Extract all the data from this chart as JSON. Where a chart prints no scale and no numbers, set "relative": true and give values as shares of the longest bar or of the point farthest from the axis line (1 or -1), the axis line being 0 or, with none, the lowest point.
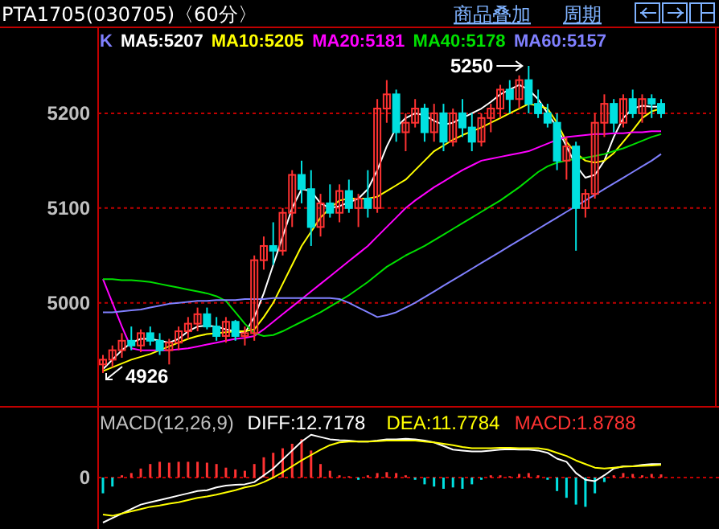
{
  "chart_data": [
    {
      "type": "candlestick",
      "title": "PTA1705(030705)〈60分〉",
      "legend_title": "K",
      "legend": "top",
      "grid": "y",
      "annotations": [
        "商品叠加",
        "周期",
        "5250",
        "4926"
      ],
      "categories": [
        null,
        null,
        null,
        null,
        null,
        null,
        null,
        null,
        null,
        null,
        null,
        null,
        null,
        null,
        null,
        null,
        null,
        null,
        null,
        null,
        null,
        null,
        null,
        null,
        null,
        null,
        null,
        null,
        null,
        null,
        null,
        null,
        null,
        null,
        null,
        null,
        null,
        null,
        null,
        null,
        null,
        null,
        null,
        null,
        null,
        null,
        null,
        null,
        null,
        null,
        null,
        null,
        null,
        null,
        null,
        null,
        null,
        null,
        null,
        null
      ],
      "ylim": [
        4892,
        5289
      ],
      "yticks": [
        5000,
        5100,
        5200
      ],
      "ohlc": [
        [
          4935,
          4945,
          4926,
          4940
        ],
        [
          4940,
          4955,
          4932,
          4950
        ],
        [
          4950,
          4968,
          4942,
          4960
        ],
        [
          4960,
          4975,
          4950,
          4955
        ],
        [
          4955,
          4972,
          4948,
          4968
        ],
        [
          4968,
          4975,
          4955,
          4960
        ],
        [
          4960,
          4968,
          4945,
          4950
        ],
        [
          4950,
          4962,
          4935,
          4958
        ],
        [
          4958,
          4975,
          4950,
          4970
        ],
        [
          4970,
          4985,
          4962,
          4978
        ],
        [
          4978,
          4995,
          4970,
          4988
        ],
        [
          4988,
          4995,
          4972,
          4975
        ],
        [
          4975,
          4985,
          4960,
          4965
        ],
        [
          4965,
          4985,
          4958,
          4980
        ],
        [
          4980,
          4982,
          4960,
          4965
        ],
        [
          4965,
          4975,
          4955,
          4968
        ],
        [
          4968,
          5050,
          4960,
          5045
        ],
        [
          5045,
          5070,
          5035,
          5060
        ],
        [
          5060,
          5085,
          5040,
          5055
        ],
        [
          5055,
          5100,
          5050,
          5095
        ],
        [
          5095,
          5140,
          5080,
          5135
        ],
        [
          5135,
          5150,
          5105,
          5120
        ],
        [
          5120,
          5140,
          5060,
          5080
        ],
        [
          5080,
          5115,
          5070,
          5105
        ],
        [
          5105,
          5125,
          5090,
          5095
        ],
        [
          5095,
          5125,
          5085,
          5118
        ],
        [
          5118,
          5130,
          5095,
          5100
        ],
        [
          5100,
          5115,
          5080,
          5110
        ],
        [
          5110,
          5140,
          5090,
          5100
        ],
        [
          5100,
          5215,
          5095,
          5205
        ],
        [
          5205,
          5235,
          5190,
          5220
        ],
        [
          5220,
          5225,
          5170,
          5180
        ],
        [
          5180,
          5200,
          5160,
          5190
        ],
        [
          5190,
          5215,
          5185,
          5205
        ],
        [
          5205,
          5210,
          5170,
          5180
        ],
        [
          5180,
          5210,
          5170,
          5200
        ],
        [
          5200,
          5210,
          5160,
          5170
        ],
        [
          5170,
          5205,
          5165,
          5200
        ],
        [
          5200,
          5215,
          5175,
          5185
        ],
        [
          5185,
          5200,
          5160,
          5170
        ],
        [
          5170,
          5200,
          5165,
          5195
        ],
        [
          5195,
          5210,
          5180,
          5205
        ],
        [
          5205,
          5230,
          5195,
          5225
        ],
        [
          5225,
          5235,
          5200,
          5215
        ],
        [
          5215,
          5240,
          5205,
          5235
        ],
        [
          5235,
          5250,
          5200,
          5210
        ],
        [
          5210,
          5225,
          5195,
          5200
        ],
        [
          5200,
          5210,
          5185,
          5190
        ],
        [
          5190,
          5200,
          5140,
          5150
        ],
        [
          5150,
          5175,
          5130,
          5165
        ],
        [
          5165,
          5170,
          5055,
          5100
        ],
        [
          5100,
          5120,
          5090,
          5115
        ],
        [
          5115,
          5200,
          5110,
          5190
        ],
        [
          5190,
          5220,
          5175,
          5210
        ],
        [
          5210,
          5215,
          5180,
          5190
        ],
        [
          5190,
          5220,
          5185,
          5215
        ],
        [
          5215,
          5225,
          5195,
          5200
        ],
        [
          5200,
          5220,
          5190,
          5215
        ],
        [
          5215,
          5220,
          5195,
          5210
        ],
        [
          5210,
          5215,
          5195,
          5200
        ]
      ],
      "series": [
        {
          "name": "MA5:5207",
          "type": "line",
          "color": "#ffffff",
          "values": [
            4930,
            4940,
            4950,
            4958,
            4962,
            4962,
            4960,
            4958,
            4962,
            4970,
            4975,
            4976,
            4975,
            4972,
            4970,
            4968,
            4985,
            5010,
            5040,
            5070,
            5100,
            5120,
            5118,
            5105,
            5100,
            5102,
            5106,
            5110,
            5120,
            5140,
            5165,
            5185,
            5195,
            5200,
            5198,
            5192,
            5188,
            5190,
            5195,
            5200,
            5205,
            5212,
            5220,
            5225,
            5230,
            5225,
            5215,
            5200,
            5185,
            5165,
            5145,
            5132,
            5135,
            5150,
            5175,
            5195,
            5205,
            5208,
            5207,
            5207
          ]
        },
        {
          "name": "MA10:5205",
          "type": "line",
          "color": "#ffff00",
          "values": [
            4928,
            4932,
            4936,
            4940,
            4943,
            4946,
            4950,
            4954,
            4958,
            4962,
            4965,
            4967,
            4968,
            4969,
            4970,
            4970,
            4972,
            4985,
            5000,
            5020,
            5040,
            5060,
            5075,
            5090,
            5100,
            5108,
            5110,
            5110,
            5110,
            5112,
            5118,
            5124,
            5130,
            5140,
            5150,
            5160,
            5166,
            5172,
            5177,
            5181,
            5185,
            5190,
            5195,
            5200,
            5205,
            5210,
            5208,
            5205,
            5190,
            5170,
            5158,
            5150,
            5148,
            5150,
            5158,
            5170,
            5182,
            5195,
            5202,
            5205
          ]
        },
        {
          "name": "MA20:5181",
          "type": "line",
          "color": "#ff00ff",
          "values": [
            5025,
            5000,
            4975,
            4952,
            4950,
            4950,
            4950,
            4950,
            4951,
            4952,
            4954,
            4956,
            4958,
            4960,
            4962,
            4963,
            4965,
            4972,
            4980,
            4988,
            4996,
            5004,
            5012,
            5020,
            5028,
            5036,
            5044,
            5052,
            5060,
            5070,
            5080,
            5090,
            5100,
            5108,
            5115,
            5122,
            5128,
            5134,
            5140,
            5145,
            5150,
            5152,
            5154,
            5156,
            5158,
            5160,
            5164,
            5168,
            5172,
            5175,
            5176,
            5177,
            5178,
            5178,
            5179,
            5179,
            5180,
            5180,
            5181,
            5181
          ]
        },
        {
          "name": "MA40:5178",
          "type": "line",
          "color": "#00e000",
          "values": [
            5025,
            5025,
            5024,
            5024,
            5023,
            5022,
            5020,
            5018,
            5016,
            5014,
            5012,
            5010,
            5007,
            5002,
            4990,
            4978,
            4968,
            4965,
            4966,
            4970,
            4975,
            4980,
            4985,
            4990,
            4996,
            5002,
            5008,
            5015,
            5022,
            5030,
            5038,
            5044,
            5050,
            5055,
            5060,
            5066,
            5072,
            5078,
            5084,
            5090,
            5096,
            5102,
            5108,
            5115,
            5122,
            5130,
            5138,
            5144,
            5148,
            5150,
            5152,
            5153,
            5155,
            5157,
            5160,
            5163,
            5167,
            5171,
            5175,
            5178
          ]
        },
        {
          "name": "MA60:5157",
          "type": "line",
          "color": "#8080ff",
          "values": [
            4990,
            4990,
            4991,
            4992,
            4993,
            4995,
            4997,
            4999,
            5000,
            5001,
            5002,
            5002,
            5003,
            5003,
            5003,
            5004,
            5004,
            5004,
            5005,
            5005,
            5005,
            5005,
            5005,
            5005,
            5005,
            5004,
            5000,
            4995,
            4990,
            4985,
            4987,
            4990,
            4995,
            5000,
            5006,
            5012,
            5018,
            5024,
            5030,
            5036,
            5042,
            5048,
            5054,
            5060,
            5066,
            5072,
            5078,
            5084,
            5090,
            5096,
            5102,
            5108,
            5114,
            5120,
            5126,
            5132,
            5138,
            5144,
            5150,
            5157
          ]
        }
      ]
    },
    {
      "type": "bar",
      "title": "MACD(12,26,9)",
      "relative": true,
      "legend": "top left",
      "categories": [
        null,
        null,
        null,
        null,
        null,
        null,
        null,
        null,
        null,
        null,
        null,
        null,
        null,
        null,
        null,
        null,
        null,
        null,
        null,
        null,
        null,
        null,
        null,
        null,
        null,
        null,
        null,
        null,
        null,
        null,
        null,
        null,
        null,
        null,
        null,
        null,
        null,
        null,
        null,
        null,
        null,
        null,
        null,
        null,
        null,
        null,
        null,
        null,
        null,
        null,
        null,
        null,
        null,
        null,
        null,
        null,
        null,
        null,
        null,
        null
      ],
      "ref_lines": [
        {
          "axis": "y",
          "value": 0,
          "label": "0",
          "color": "#c00000",
          "line_style": "dotted"
        }
      ],
      "series": [
        {
          "name": "DIFF:12.7178",
          "type": "line",
          "color": "#ffffff",
          "values": [
            -1,
            -0.9,
            -0.8,
            -0.7,
            -0.6,
            -0.55,
            -0.5,
            -0.45,
            -0.4,
            -0.35,
            -0.3,
            -0.28,
            -0.22,
            -0.18,
            -0.16,
            -0.15,
            -0.1,
            0.05,
            0.2,
            0.4,
            0.6,
            0.8,
            0.95,
            0.9,
            0.85,
            0.83,
            0.82,
            0.8,
            0.8,
            0.82,
            0.85,
            0.85,
            0.86,
            0.85,
            0.82,
            0.78,
            0.7,
            0.62,
            0.6,
            0.58,
            0.58,
            0.6,
            0.62,
            0.63,
            0.62,
            0.62,
            0.6,
            0.55,
            0.42,
            0.35,
            0.1,
            -0.05,
            -0.08,
            0.05,
            0.2,
            0.25,
            0.25,
            0.28,
            0.3,
            0.3
          ]
        },
        {
          "name": "DEA:11.7784",
          "type": "line",
          "color": "#ffff00",
          "values": [
            -0.82,
            -0.85,
            -0.8,
            -0.75,
            -0.7,
            -0.65,
            -0.62,
            -0.58,
            -0.55,
            -0.5,
            -0.45,
            -0.42,
            -0.38,
            -0.33,
            -0.28,
            -0.22,
            -0.18,
            -0.1,
            0,
            0.12,
            0.25,
            0.38,
            0.5,
            0.62,
            0.72,
            0.78,
            0.8,
            0.8,
            0.8,
            0.81,
            0.82,
            0.82,
            0.82,
            0.82,
            0.8,
            0.78,
            0.75,
            0.72,
            0.68,
            0.65,
            0.65,
            0.65,
            0.66,
            0.66,
            0.65,
            0.65,
            0.65,
            0.62,
            0.55,
            0.48,
            0.38,
            0.3,
            0.22,
            0.2,
            0.22,
            0.24,
            0.25,
            0.26,
            0.27,
            0.28
          ]
        },
        {
          "name": "MACD:1.8788",
          "type": "bar",
          "colors": [
            "#00e0e0",
            "#00e0e0",
            "#ff3232",
            "#ff3232",
            "#ff3232",
            "#ff3232",
            "#ff3232",
            "#ff3232",
            "#ff3232",
            "#ff3232",
            "#ff3232",
            "#ff3232",
            "#ff3232",
            "#ff3232",
            "#ff3232",
            "#ff3232",
            "#ff3232",
            "#ff3232",
            "#ff3232",
            "#ff3232",
            "#ff3232",
            "#ff3232",
            "#ff3232",
            "#ff3232",
            "#ff3232",
            "#ff3232",
            "#ff3232",
            "#00e0e0",
            "#ff3232",
            "#ff3232",
            "#ff3232",
            "#ff3232",
            "#ff3232",
            "#00e0e0",
            "#00e0e0",
            "#00e0e0",
            "#00e0e0",
            "#00e0e0",
            "#00e0e0",
            "#00e0e0",
            "#00e0e0",
            "#ff3232",
            "#ff3232",
            "#ff3232",
            "#ff3232",
            "#ff3232",
            "#ff3232",
            "#00e0e0",
            "#00e0e0",
            "#00e0e0",
            "#00e0e0",
            "#00e0e0",
            "#00e0e0",
            "#00e0e0",
            "#ff3232",
            "#ff3232",
            "#ff3232",
            "#ff3232",
            "#ff3232",
            "#ff3232"
          ],
          "values": [
            -0.35,
            -0.2,
            0.05,
            0.1,
            0.2,
            0.3,
            0.35,
            0.33,
            0.35,
            0.35,
            0.35,
            0.33,
            0.3,
            0.22,
            0.18,
            0.15,
            0.3,
            0.45,
            0.55,
            0.65,
            0.75,
            0.85,
            0.6,
            0.3,
            0.15,
            0.05,
            0.03,
            -0.05,
            0.05,
            0.1,
            0.12,
            0.1,
            0.05,
            -0.05,
            -0.15,
            -0.2,
            -0.25,
            -0.22,
            -0.25,
            -0.15,
            -0.05,
            0.05,
            0.05,
            0.03,
            0.08,
            0.1,
            0.05,
            -0.05,
            -0.3,
            -0.45,
            -0.6,
            -0.65,
            -0.35,
            -0.1,
            0.05,
            0.1,
            0.08,
            0.05,
            0.08,
            0.07
          ]
        }
      ]
    }
  ]
}
